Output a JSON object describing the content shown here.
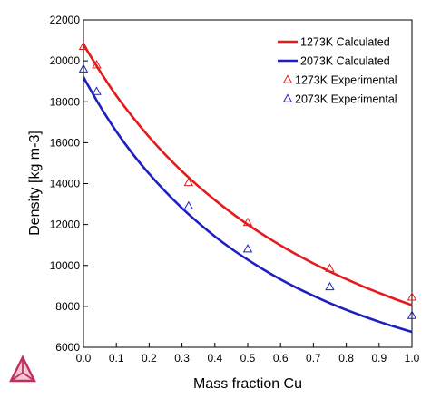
{
  "chart_data": {
    "type": "line",
    "xlabel": "Mass fraction Cu",
    "ylabel": "Density [kg m-3]",
    "xlim": [
      0.0,
      1.0
    ],
    "ylim": [
      6000,
      22000
    ],
    "x_ticks": [
      0.0,
      0.1,
      0.2,
      0.3,
      0.4,
      0.5,
      0.6,
      0.7,
      0.8,
      0.9,
      1.0
    ],
    "x_tick_labels": [
      "0.0",
      "0.1",
      "0.2",
      "0.3",
      "0.4",
      "0.5",
      "0.6",
      "0.7",
      "0.8",
      "0.9",
      "1.0"
    ],
    "y_ticks": [
      6000,
      8000,
      10000,
      12000,
      14000,
      16000,
      18000,
      20000,
      22000
    ],
    "y_tick_labels": [
      "6000",
      "8000",
      "10000",
      "12000",
      "14000",
      "16000",
      "18000",
      "20000",
      "22000"
    ],
    "grid": false,
    "legend_position": "top-right",
    "series": [
      {
        "name": "1273K Calculated",
        "kind": "line",
        "color": "#e41a1c",
        "x": [
          0.0,
          0.05,
          0.1,
          0.15,
          0.2,
          0.25,
          0.3,
          0.35,
          0.4,
          0.45,
          0.5,
          0.55,
          0.6,
          0.65,
          0.7,
          0.75,
          0.8,
          0.85,
          0.9,
          0.95,
          1.0
        ],
        "y": [
          20800,
          19500,
          18300,
          17250,
          16280,
          15400,
          14600,
          13870,
          13200,
          12580,
          12000,
          11470,
          10980,
          10520,
          10100,
          9700,
          9330,
          8980,
          8660,
          8350,
          8060
        ]
      },
      {
        "name": "2073K Calculated",
        "kind": "line",
        "color": "#1f1fbf",
        "x": [
          0.0,
          0.05,
          0.1,
          0.15,
          0.2,
          0.25,
          0.3,
          0.35,
          0.4,
          0.45,
          0.5,
          0.55,
          0.6,
          0.65,
          0.7,
          0.75,
          0.8,
          0.85,
          0.9,
          0.95,
          1.0
        ],
        "y": [
          19200,
          17800,
          16550,
          15450,
          14480,
          13600,
          12800,
          12080,
          11420,
          10820,
          10280,
          9780,
          9320,
          8900,
          8520,
          8160,
          7830,
          7530,
          7250,
          6990,
          6750
        ]
      },
      {
        "name": "1273K Experimental",
        "kind": "marker",
        "color": "#e41a1c",
        "x": [
          0.0,
          0.04,
          0.32,
          0.5,
          0.75,
          1.0
        ],
        "y": [
          20700,
          19800,
          14050,
          12100,
          9850,
          8450
        ]
      },
      {
        "name": "2073K Experimental",
        "kind": "marker",
        "color": "#1f1fbf",
        "x": [
          0.0,
          0.04,
          0.32,
          0.5,
          0.75,
          1.0
        ],
        "y": [
          19600,
          18500,
          12900,
          10800,
          8950,
          7550
        ]
      }
    ]
  },
  "logo": {
    "icon": "triangle-logo-icon",
    "color": "#c0305a"
  }
}
